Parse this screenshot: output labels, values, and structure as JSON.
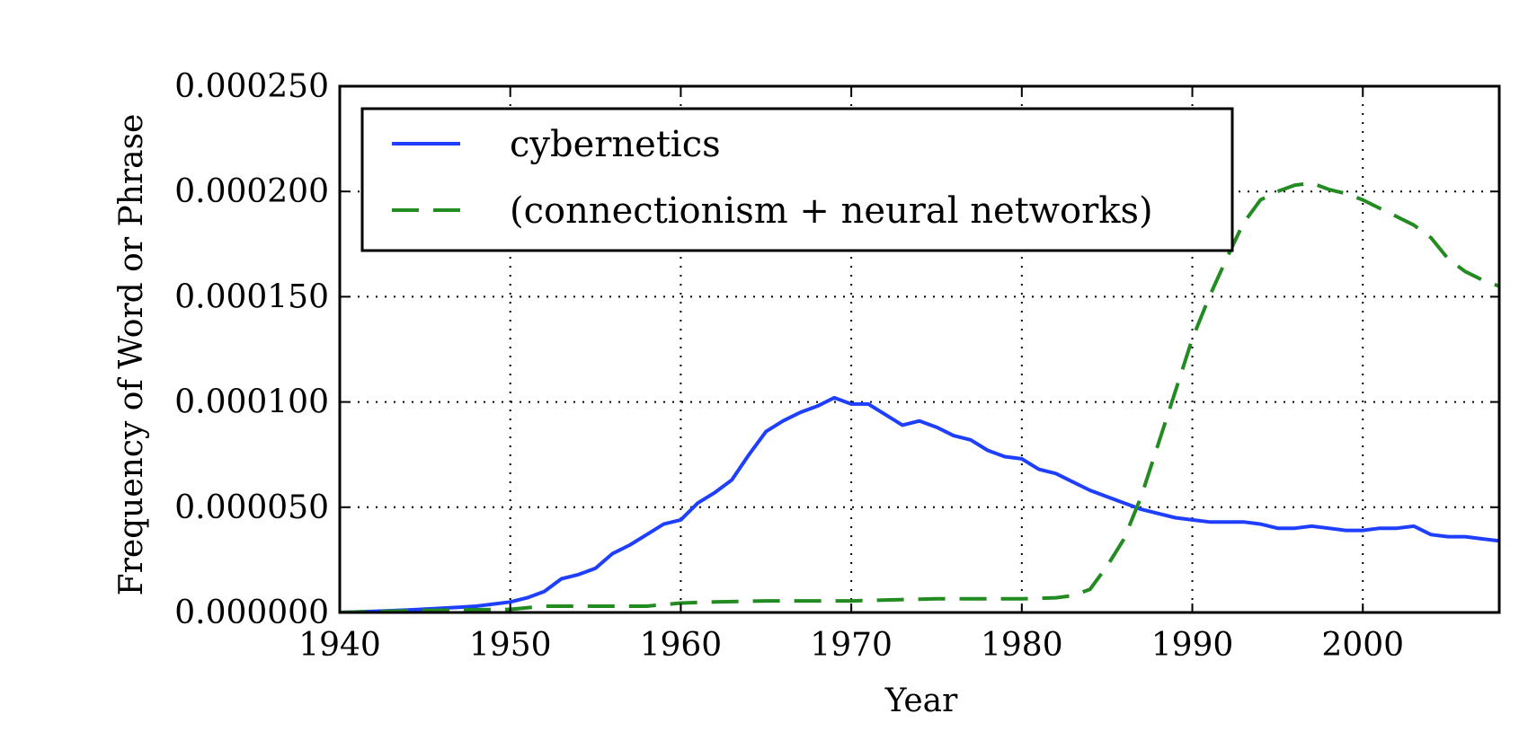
{
  "chart_data": {
    "type": "line",
    "xlabel": "Year",
    "ylabel": "Frequency of Word or Phrase",
    "xlim": [
      1940,
      2008
    ],
    "ylim": [
      0,
      0.00025
    ],
    "x_ticks": [
      1940,
      1950,
      1960,
      1970,
      1980,
      1990,
      2000
    ],
    "x_tick_labels": [
      "1940",
      "1950",
      "1960",
      "1970",
      "1980",
      "1990",
      "2000"
    ],
    "y_ticks": [
      0,
      5e-05,
      0.0001,
      0.00015,
      0.0002,
      0.00025
    ],
    "y_tick_labels": [
      "0.000000",
      "0.000050",
      "0.000100",
      "0.000150",
      "0.000200",
      "0.000250"
    ],
    "grid": true,
    "legend_position": "upper-left",
    "series": [
      {
        "name": "cybernetics",
        "color": "#1f3fff",
        "line_style": "solid",
        "x": [
          1940,
          1942,
          1944,
          1946,
          1948,
          1950,
          1951,
          1952,
          1953,
          1954,
          1955,
          1956,
          1957,
          1958,
          1959,
          1960,
          1961,
          1962,
          1963,
          1964,
          1965,
          1966,
          1967,
          1968,
          1969,
          1970,
          1971,
          1972,
          1973,
          1974,
          1975,
          1976,
          1977,
          1978,
          1979,
          1980,
          1981,
          1982,
          1983,
          1984,
          1985,
          1986,
          1987,
          1988,
          1989,
          1990,
          1991,
          1992,
          1993,
          1994,
          1995,
          1996,
          1997,
          1998,
          1999,
          2000,
          2001,
          2002,
          2003,
          2004,
          2005,
          2006,
          2007,
          2008
        ],
        "y": [
          0.0,
          5e-07,
          1.2e-06,
          2e-06,
          3e-06,
          5e-06,
          7e-06,
          1e-05,
          1.6e-05,
          1.8e-05,
          2.1e-05,
          2.8e-05,
          3.2e-05,
          3.7e-05,
          4.2e-05,
          4.4e-05,
          5.2e-05,
          5.7e-05,
          6.3e-05,
          7.5e-05,
          8.6e-05,
          9.1e-05,
          9.5e-05,
          9.8e-05,
          0.000102,
          9.9e-05,
          9.9e-05,
          9.4e-05,
          8.9e-05,
          9.1e-05,
          8.8e-05,
          8.4e-05,
          8.2e-05,
          7.7e-05,
          7.4e-05,
          7.3e-05,
          6.8e-05,
          6.6e-05,
          6.2e-05,
          5.8e-05,
          5.5e-05,
          5.2e-05,
          4.9e-05,
          4.7e-05,
          4.5e-05,
          4.4e-05,
          4.3e-05,
          4.3e-05,
          4.3e-05,
          4.2e-05,
          4e-05,
          4e-05,
          4.1e-05,
          4e-05,
          3.9e-05,
          3.9e-05,
          4e-05,
          4e-05,
          4.1e-05,
          3.7e-05,
          3.6e-05,
          3.6e-05,
          3.5e-05,
          3.4e-05
        ]
      },
      {
        "name": "(connectionism + neural networks)",
        "color": "#228b22",
        "line_style": "dashed",
        "x": [
          1940,
          1945,
          1950,
          1952,
          1955,
          1958,
          1960,
          1962,
          1965,
          1970,
          1975,
          1980,
          1982,
          1983,
          1984,
          1985,
          1986,
          1987,
          1988,
          1989,
          1990,
          1991,
          1992,
          1993,
          1994,
          1995,
          1996,
          1997,
          1998,
          1999,
          2000,
          2001,
          2002,
          2003,
          2004,
          2005,
          2006,
          2007,
          2008
        ],
        "y": [
          0.0,
          1e-06,
          1.5e-06,
          3e-06,
          3e-06,
          3e-06,
          4.5e-06,
          5e-06,
          5.5e-06,
          5.5e-06,
          6.5e-06,
          6.5e-06,
          7e-06,
          8e-06,
          1.1e-05,
          2.2e-05,
          3.5e-05,
          5.5e-05,
          8e-05,
          0.000105,
          0.00013,
          0.00015,
          0.000168,
          0.000185,
          0.000196,
          0.0002,
          0.000203,
          0.000204,
          0.000201,
          0.000199,
          0.000196,
          0.000192,
          0.000188,
          0.000184,
          0.000178,
          0.000168,
          0.000162,
          0.000158,
          0.000155
        ]
      }
    ]
  }
}
